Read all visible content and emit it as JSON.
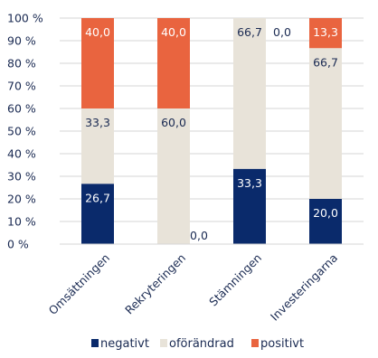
{
  "chart_data": {
    "type": "bar",
    "stacked": true,
    "title": "",
    "xlabel": "",
    "ylabel": "",
    "ylim": [
      0,
      100
    ],
    "ytick_step": 10,
    "ytick_suffix": " %",
    "grid": true,
    "legend_position": "bottom",
    "categories": [
      "Omsättningen",
      "Rekryteringen",
      "Stämningen",
      "Investeringarna"
    ],
    "series": [
      {
        "name": "negativt",
        "color": "#0a2a6b",
        "label_color": "#ffffff",
        "values": [
          26.7,
          0.0,
          33.3,
          20.0
        ],
        "labels": [
          "26,7",
          "0,0",
          "33,3",
          "20,0"
        ]
      },
      {
        "name": "oförändrad",
        "color": "#e8e3d9",
        "label_color": "#1a2a52",
        "values": [
          33.3,
          60.0,
          66.7,
          66.7
        ],
        "labels": [
          "33,3",
          "60,0",
          "66,7",
          "66,7"
        ]
      },
      {
        "name": "positivt",
        "color": "#e9643f",
        "label_color": "#ffffff",
        "values": [
          40.0,
          40.0,
          0.0,
          13.3
        ],
        "labels": [
          "40,0",
          "40,0",
          "0,0",
          "13,3"
        ]
      }
    ]
  }
}
